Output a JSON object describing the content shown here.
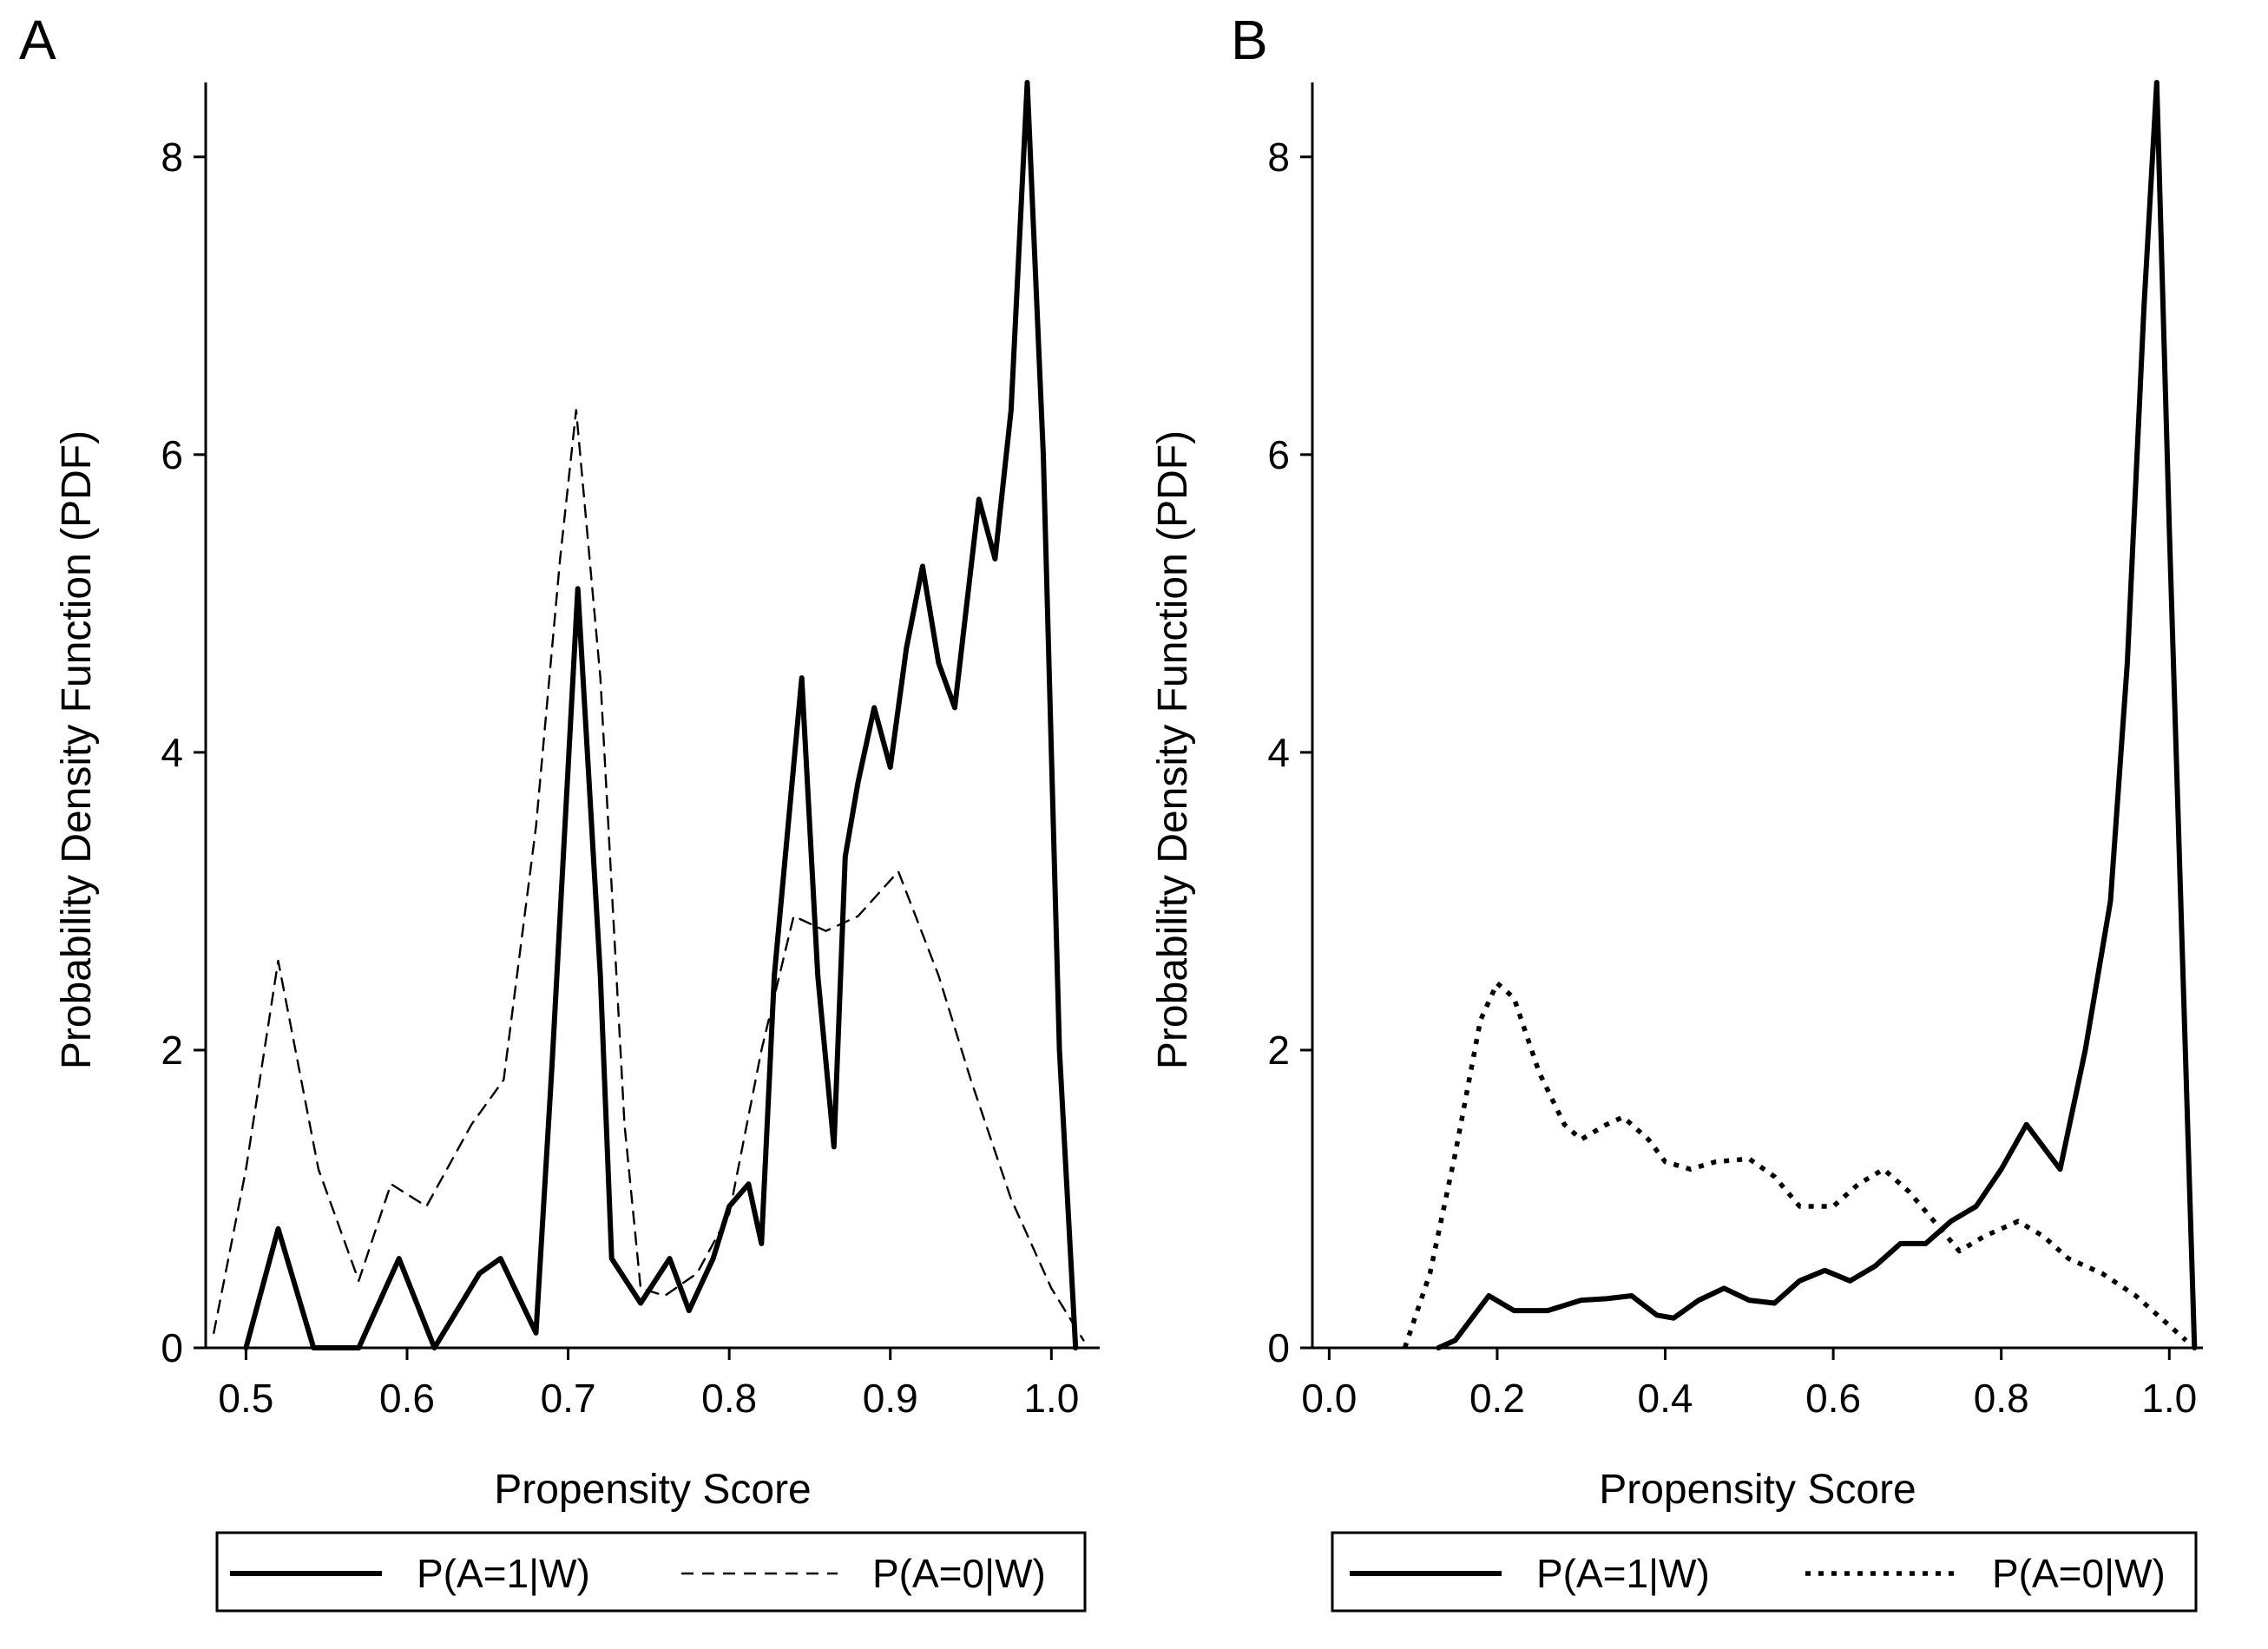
{
  "chart_data": [
    {
      "panel_label": "A",
      "type": "line",
      "xlabel": "Propensity Score",
      "ylabel": "Probability Density Function (PDF)",
      "xlim": [
        0.475,
        1.03
      ],
      "ylim": [
        0,
        8.5
      ],
      "xticks": [
        "0.5",
        "0.6",
        "0.7",
        "0.8",
        "0.9",
        "1.0"
      ],
      "xtick_values": [
        0.5,
        0.6,
        0.7,
        0.8,
        0.9,
        1.0
      ],
      "yticks": [
        "0",
        "2",
        "4",
        "6",
        "8"
      ],
      "ytick_values": [
        0,
        2,
        4,
        6,
        8
      ],
      "grid": false,
      "legend_position": "bottom",
      "series": [
        {
          "name": "P(A=1|W)",
          "style": "solid",
          "x": [
            0.5,
            0.52,
            0.542,
            0.57,
            0.595,
            0.617,
            0.645,
            0.658,
            0.68,
            0.69,
            0.706,
            0.72,
            0.727,
            0.745,
            0.763,
            0.775,
            0.79,
            0.8,
            0.812,
            0.82,
            0.828,
            0.845,
            0.855,
            0.865,
            0.872,
            0.88,
            0.89,
            0.9,
            0.91,
            0.92,
            0.93,
            0.94,
            0.955,
            0.965,
            0.975,
            0.985,
            0.995,
            1.005,
            1.015
          ],
          "y": [
            0.0,
            0.8,
            0.0,
            0.0,
            0.6,
            0.0,
            0.5,
            0.6,
            0.1,
            1.9,
            5.1,
            2.5,
            0.6,
            0.3,
            0.6,
            0.25,
            0.6,
            0.95,
            1.1,
            0.7,
            2.5,
            4.5,
            2.5,
            1.35,
            3.3,
            3.8,
            4.3,
            3.9,
            4.7,
            5.25,
            4.6,
            4.3,
            5.7,
            5.3,
            6.3,
            8.5,
            6.0,
            2.0,
            0.0
          ]
        },
        {
          "name": "P(A=0|W)",
          "style": "dashed",
          "x": [
            0.48,
            0.5,
            0.52,
            0.545,
            0.57,
            0.59,
            0.612,
            0.64,
            0.66,
            0.68,
            0.695,
            0.705,
            0.72,
            0.735,
            0.745,
            0.76,
            0.78,
            0.8,
            0.82,
            0.84,
            0.86,
            0.88,
            0.905,
            0.93,
            0.95,
            0.975,
            1.0,
            1.02
          ],
          "y": [
            0.1,
            1.2,
            2.6,
            1.2,
            0.45,
            1.1,
            0.95,
            1.5,
            1.8,
            3.5,
            5.3,
            6.3,
            4.5,
            1.5,
            0.4,
            0.35,
            0.5,
            0.9,
            2.0,
            2.9,
            2.8,
            2.9,
            3.2,
            2.5,
            1.8,
            1.0,
            0.4,
            0.05
          ]
        }
      ],
      "legend": [
        "P(A=1|W)",
        "P(A=0|W)"
      ]
    },
    {
      "panel_label": "B",
      "type": "line",
      "xlabel": "Propensity Score",
      "ylabel": "Probability Density Function (PDF)",
      "xlim": [
        -0.02,
        1.04
      ],
      "ylim": [
        0,
        8.5
      ],
      "xticks": [
        "0.0",
        "0.2",
        "0.4",
        "0.6",
        "0.8",
        "1.0"
      ],
      "xtick_values": [
        0.0,
        0.2,
        0.4,
        0.6,
        0.8,
        1.0
      ],
      "yticks": [
        "0",
        "2",
        "4",
        "6",
        "8"
      ],
      "ytick_values": [
        0,
        2,
        4,
        6,
        8
      ],
      "grid": false,
      "legend_position": "bottom",
      "series": [
        {
          "name": "P(A=1|W)",
          "style": "solid",
          "x": [
            0.13,
            0.15,
            0.19,
            0.22,
            0.26,
            0.3,
            0.33,
            0.36,
            0.39,
            0.41,
            0.44,
            0.47,
            0.5,
            0.53,
            0.56,
            0.59,
            0.62,
            0.65,
            0.68,
            0.71,
            0.74,
            0.77,
            0.8,
            0.83,
            0.87,
            0.9,
            0.93,
            0.95,
            0.97,
            0.985,
            1.0,
            1.03
          ],
          "y": [
            0.0,
            0.05,
            0.35,
            0.25,
            0.25,
            0.32,
            0.33,
            0.35,
            0.22,
            0.2,
            0.32,
            0.4,
            0.32,
            0.3,
            0.45,
            0.52,
            0.45,
            0.55,
            0.7,
            0.7,
            0.85,
            0.95,
            1.2,
            1.5,
            1.2,
            2.0,
            3.0,
            4.6,
            7.0,
            8.5,
            5.5,
            0.0
          ]
        },
        {
          "name": "P(A=0|W)",
          "style": "dotted",
          "x": [
            0.09,
            0.12,
            0.15,
            0.18,
            0.2,
            0.22,
            0.25,
            0.28,
            0.3,
            0.33,
            0.35,
            0.38,
            0.4,
            0.43,
            0.46,
            0.5,
            0.53,
            0.56,
            0.6,
            0.63,
            0.66,
            0.69,
            0.72,
            0.75,
            0.78,
            0.82,
            0.85,
            0.88,
            0.92,
            0.96,
            1.0,
            1.02
          ],
          "y": [
            0.0,
            0.5,
            1.3,
            2.2,
            2.45,
            2.35,
            1.85,
            1.5,
            1.4,
            1.5,
            1.55,
            1.4,
            1.25,
            1.2,
            1.25,
            1.27,
            1.15,
            0.95,
            0.95,
            1.1,
            1.2,
            1.05,
            0.85,
            0.65,
            0.75,
            0.85,
            0.75,
            0.6,
            0.5,
            0.35,
            0.15,
            0.05
          ]
        }
      ],
      "legend": [
        "P(A=1|W)",
        "P(A=0|W)"
      ]
    }
  ]
}
